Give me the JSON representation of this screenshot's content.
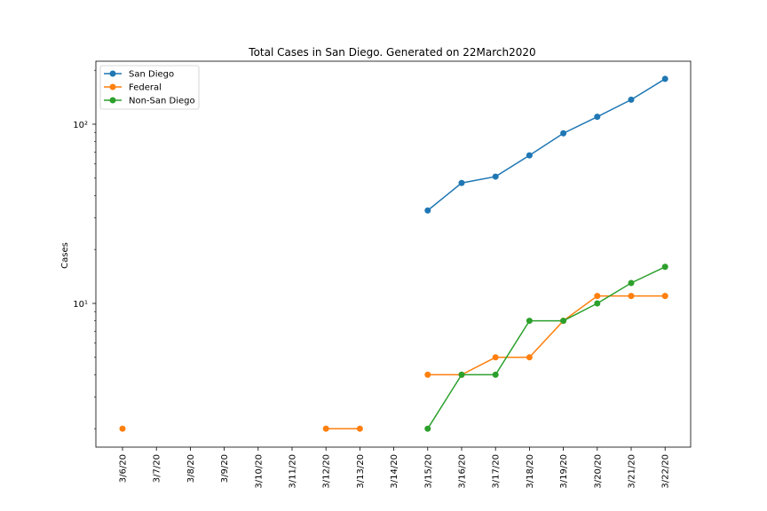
{
  "chart_data": {
    "type": "line",
    "title": "Total Cases in San Diego. Generated on 22March2020",
    "xlabel": "",
    "ylabel": "Cases",
    "y_scale": "log",
    "y_tick_labels": [
      "10¹",
      "10²"
    ],
    "categories": [
      "3/6/20",
      "3/7/20",
      "3/8/20",
      "3/9/20",
      "3/10/20",
      "3/11/20",
      "3/12/20",
      "3/13/20",
      "3/14/20",
      "3/15/20",
      "3/16/20",
      "3/17/20",
      "3/18/20",
      "3/19/20",
      "3/20/20",
      "3/21/20",
      "3/22/20"
    ],
    "series": [
      {
        "name": "San Diego",
        "color": "#1f77b4",
        "values": [
          null,
          null,
          null,
          null,
          null,
          null,
          null,
          null,
          null,
          33,
          47,
          51,
          67,
          89,
          110,
          137,
          179
        ]
      },
      {
        "name": "Federal",
        "color": "#ff7f0e",
        "values": [
          2,
          null,
          null,
          null,
          null,
          null,
          2,
          2,
          null,
          4,
          4,
          5,
          5,
          8,
          11,
          11,
          11
        ]
      },
      {
        "name": "Non-San Diego",
        "color": "#2ca02c",
        "values": [
          null,
          null,
          null,
          null,
          null,
          null,
          null,
          null,
          null,
          2,
          4,
          4,
          8,
          8,
          10,
          13,
          16
        ]
      }
    ],
    "legend_position": "top-left",
    "grid": false
  }
}
